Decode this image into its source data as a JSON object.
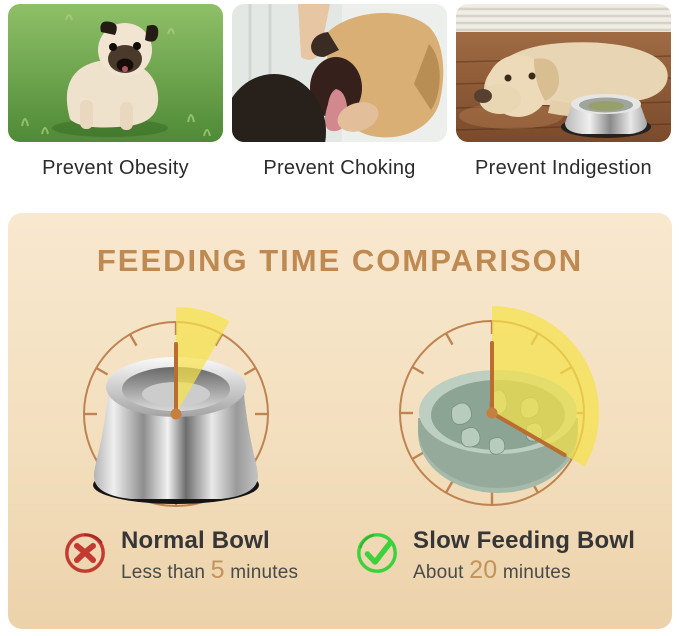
{
  "benefits": [
    {
      "caption": "Prevent Obesity",
      "photo": "obese-pug-on-grass"
    },
    {
      "caption": "Prevent Choking",
      "photo": "hand-checking-dog-mouth"
    },
    {
      "caption": "Prevent Indigestion",
      "photo": "dog-lying-beside-bowl"
    }
  ],
  "comparison": {
    "title": "FEEDING TIME COMPARISON",
    "clocks": [
      {
        "name": "normal-bowl-clock",
        "bowl": "steel",
        "wedge_degrees": 30,
        "hands": [
          {
            "deg": 0,
            "len": 70
          }
        ],
        "minutes_shown": 5
      },
      {
        "name": "slow-bowl-clock",
        "bowl": "slow-feeder",
        "wedge_degrees": 120,
        "hands": [
          {
            "deg": 0,
            "len": 70
          },
          {
            "deg": 120,
            "len": 84
          }
        ],
        "minutes_shown": 20
      }
    ],
    "clock_style": {
      "ring_color": "#BE8351",
      "tick_color": "#BE8351",
      "hand_color": "#B96E30",
      "wedge_color": "#F5E249",
      "wedge_opacity": 0.72,
      "dot_color": "#C5803F"
    },
    "verdicts": [
      {
        "icon": "cross-icon",
        "icon_color": "#C33A32",
        "title": "Normal Bowl",
        "time_prefix": "Less than ",
        "time_value": "5",
        "time_suffix": " minutes"
      },
      {
        "icon": "check-icon",
        "icon_color": "#3ED13E",
        "title": "Slow Feeding Bowl",
        "time_prefix": "About ",
        "time_value": "20",
        "time_suffix": " minutes"
      }
    ],
    "highlight_color": "#C2935B",
    "panel_colors": {
      "top": "#F8E8CF",
      "bottom": "#ECD2AA",
      "title": "#BF8A51"
    }
  }
}
